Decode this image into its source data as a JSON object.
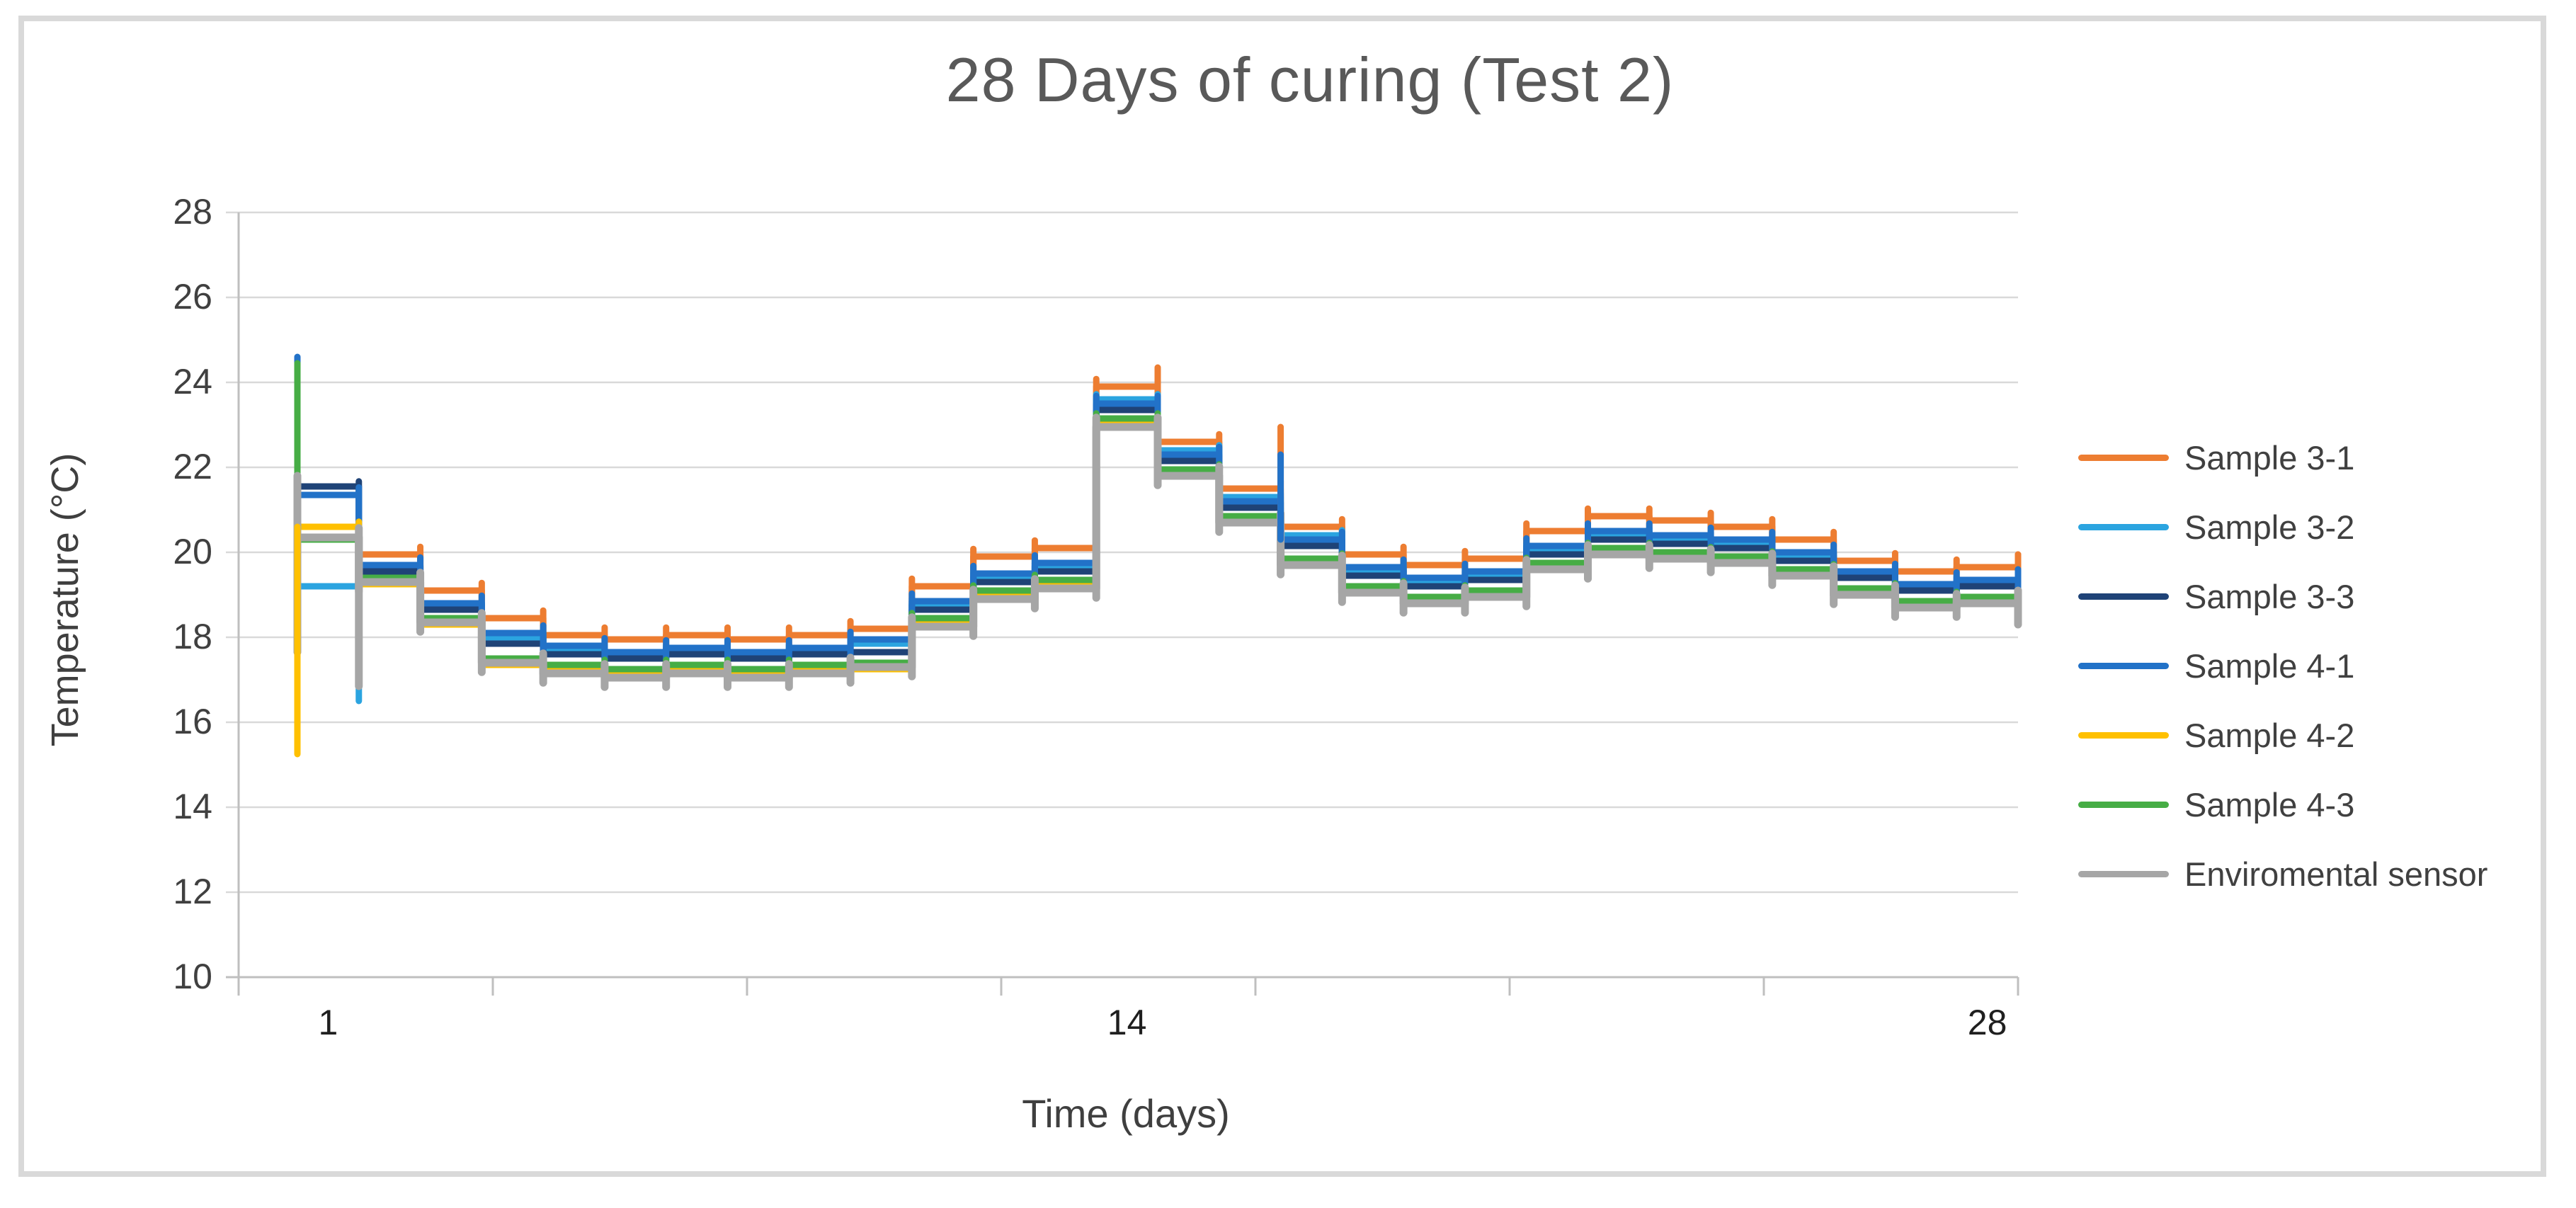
{
  "title": {
    "text": "28 Days of curing (Test 2)"
  },
  "axes": {
    "x": {
      "title": "Time (days)",
      "tick_labels": [
        {
          "day": 1,
          "text": "1"
        },
        {
          "day": 14,
          "text": "14"
        },
        {
          "day": 28,
          "text": "28"
        }
      ]
    },
    "y": {
      "title": "Temperature (°C)",
      "ticks": [
        28,
        26,
        24,
        22,
        20,
        18,
        16,
        14,
        12,
        10
      ]
    }
  },
  "legend": {
    "items": [
      {
        "label": "Sample 3-1",
        "color": "#ED7D31"
      },
      {
        "label": "Sample 3-2",
        "color": "#2BA4E0"
      },
      {
        "label": "Sample 3-3",
        "color": "#1F4377"
      },
      {
        "label": "Sample 4-1",
        "color": "#2272C8"
      },
      {
        "label": "Sample 4-2",
        "color": "#FFC000"
      },
      {
        "label": "Sample 4-3",
        "color": "#46AD45"
      },
      {
        "label": "Enviromental sensor",
        "color": "#A6A6A6"
      }
    ]
  },
  "chart_data": {
    "type": "line",
    "title": "28 Days of curing (Test 2)",
    "xlabel": "Time (days)",
    "ylabel": "Temperature (°C)",
    "ylim": [
      10,
      28
    ],
    "y_tick_step": 2,
    "x": [
      1,
      2,
      3,
      4,
      5,
      6,
      7,
      8,
      9,
      10,
      11,
      12,
      13,
      14,
      15,
      16,
      17,
      18,
      19,
      20,
      21,
      22,
      23,
      24,
      25,
      26,
      27,
      28
    ],
    "x_ticks_labeled": [
      1,
      14,
      28
    ],
    "grid": "horizontal",
    "legend_position": "right",
    "line_style": "step-daily",
    "series": [
      {
        "name": "Sample 3-1",
        "color": "#ED7D31",
        "width": 9,
        "overshoot": 0.18,
        "values": [
          20.35,
          19.95,
          19.1,
          18.45,
          18.05,
          17.95,
          18.05,
          17.95,
          18.05,
          18.2,
          19.2,
          19.9,
          20.1,
          23.9,
          22.6,
          21.5,
          20.6,
          19.95,
          19.7,
          19.85,
          20.5,
          20.85,
          20.75,
          20.6,
          20.3,
          19.8,
          19.55,
          19.65
        ]
      },
      {
        "name": "Sample 3-2",
        "color": "#2BA4E0",
        "width": 9,
        "overshoot": 0.12,
        "values": [
          19.2,
          19.3,
          18.7,
          18.0,
          17.7,
          17.6,
          17.7,
          17.6,
          17.7,
          17.85,
          18.8,
          19.45,
          19.7,
          23.6,
          22.4,
          21.3,
          20.4,
          19.6,
          19.35,
          19.5,
          20.1,
          20.45,
          20.35,
          20.25,
          19.95,
          19.5,
          19.2,
          19.3
        ]
      },
      {
        "name": "Sample 3-3",
        "color": "#1F4377",
        "width": 9,
        "overshoot": 0.12,
        "values": [
          21.55,
          19.55,
          18.65,
          17.85,
          17.6,
          17.5,
          17.6,
          17.5,
          17.6,
          17.65,
          18.65,
          19.3,
          19.55,
          23.35,
          22.15,
          21.05,
          20.15,
          19.45,
          19.2,
          19.35,
          19.95,
          20.3,
          20.2,
          20.1,
          19.8,
          19.4,
          19.1,
          19.2
        ]
      },
      {
        "name": "Sample 4-1",
        "color": "#2272C8",
        "width": 9,
        "overshoot": 0.18,
        "values": [
          21.35,
          19.7,
          18.8,
          18.1,
          17.8,
          17.65,
          17.75,
          17.65,
          17.75,
          17.95,
          18.85,
          19.5,
          19.75,
          23.5,
          22.3,
          21.2,
          20.3,
          19.65,
          19.4,
          19.55,
          20.15,
          20.5,
          20.4,
          20.3,
          20.0,
          19.55,
          19.25,
          19.35
        ]
      },
      {
        "name": "Sample 4-2",
        "color": "#FFC000",
        "width": 9,
        "overshoot": 0.12,
        "values": [
          20.6,
          19.25,
          18.3,
          17.35,
          17.2,
          17.1,
          17.2,
          17.1,
          17.2,
          17.25,
          18.3,
          18.95,
          19.2,
          23.0,
          21.85,
          20.75,
          19.75,
          19.1,
          18.85,
          19.0,
          19.65,
          20.0,
          19.9,
          19.8,
          19.5,
          19.05,
          18.75,
          18.85
        ]
      },
      {
        "name": "Sample 4-3",
        "color": "#46AD45",
        "width": 9,
        "overshoot": 0.12,
        "values": [
          20.3,
          19.4,
          18.45,
          17.5,
          17.35,
          17.25,
          17.35,
          17.25,
          17.35,
          17.4,
          18.45,
          19.1,
          19.35,
          23.15,
          21.95,
          20.85,
          19.85,
          19.2,
          18.95,
          19.1,
          19.75,
          20.1,
          20.0,
          19.9,
          19.6,
          19.15,
          18.85,
          18.95
        ]
      },
      {
        "name": "Enviromental sensor",
        "color": "#A6A6A6",
        "width": 11,
        "overshoot": 0.22,
        "values": [
          20.35,
          19.3,
          18.35,
          17.4,
          17.15,
          17.05,
          17.15,
          17.05,
          17.15,
          17.3,
          18.25,
          18.9,
          19.15,
          22.95,
          21.8,
          20.7,
          19.7,
          19.05,
          18.8,
          18.95,
          19.6,
          19.95,
          19.85,
          19.75,
          19.45,
          19.0,
          18.7,
          18.8
        ]
      }
    ],
    "transient_spikes": [
      {
        "series": "Sample 4-1",
        "at_day": 1.0,
        "from": 21.35,
        "to": 24.6
      },
      {
        "series": "Sample 4-3",
        "at_day": 1.0,
        "from": 20.3,
        "to": 24.45
      },
      {
        "series": "Enviromental sensor",
        "at_day": 1.0,
        "from": 17.65,
        "to": 21.8
      },
      {
        "series": "Sample 4-2",
        "at_day": 1.0,
        "from": 15.25,
        "to": 20.6
      },
      {
        "series": "Sample 3-2",
        "at_day": 2.0,
        "from": 16.5,
        "to": 19.2
      },
      {
        "series": "Enviromental sensor",
        "at_day": 2.0,
        "from": 16.85,
        "to": 20.35
      },
      {
        "series": "Sample 3-1",
        "at_day": 15.0,
        "from": 23.9,
        "to": 24.35
      },
      {
        "series": "Sample 3-1",
        "at_day": 17.0,
        "from": 20.6,
        "to": 22.95
      },
      {
        "series": "Sample 4-1",
        "at_day": 17.0,
        "from": 20.3,
        "to": 22.3
      },
      {
        "series": "Sample 3-1",
        "at_day": 29.0,
        "from": 19.35,
        "to": 19.95
      },
      {
        "series": "Sample 4-1",
        "at_day": 29.0,
        "from": 18.95,
        "to": 19.6
      },
      {
        "series": "Enviromental sensor",
        "at_day": 29.0,
        "from": 18.3,
        "to": 19.1
      }
    ]
  },
  "colors": {
    "title": "#595959",
    "axis_line": "#BFBFBF",
    "gridline": "#D9D9D9",
    "frame_border": "#D9D9D9",
    "tick_label": "#404040"
  }
}
